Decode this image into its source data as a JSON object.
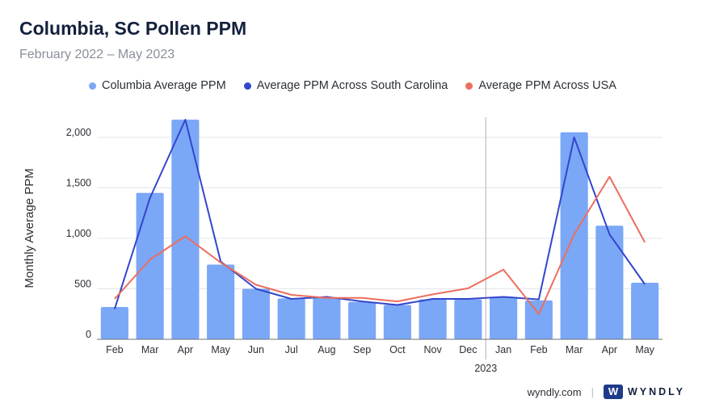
{
  "title": "Columbia, SC Pollen PPM",
  "subtitle": "February 2022 – May 2023",
  "footer": {
    "site": "wyndly.com",
    "separator": "|",
    "brand": "WYNDLY",
    "brand_icon": "wyndly-logo-icon"
  },
  "colors": {
    "bar": "#7ba7f7",
    "sc_line": "#3346cc",
    "usa_line": "#ec6e5e",
    "grid": "#e3e5ea",
    "divider": "#b9bcc2"
  },
  "chart_data": {
    "type": "bar",
    "title": "Columbia, SC Pollen PPM",
    "subtitle": "February 2022 – May 2023",
    "ylabel": "Monthly Average PPM",
    "xlabel": "",
    "ylim": [
      0,
      2200
    ],
    "yticks": [
      0,
      500,
      1000,
      1500,
      2000
    ],
    "ytick_labels": [
      "0",
      "500",
      "1,000",
      "1,500",
      "2,000"
    ],
    "categories": [
      "Feb",
      "Mar",
      "Apr",
      "May",
      "Jun",
      "Jul",
      "Aug",
      "Sep",
      "Oct",
      "Nov",
      "Dec",
      "Jan",
      "Feb",
      "Mar",
      "Apr",
      "May"
    ],
    "year_marker": {
      "label": "2023",
      "before_index": 11
    },
    "legend_position": "top",
    "grid": true,
    "series": [
      {
        "name": "Columbia Average PPM",
        "kind": "bar",
        "values": [
          320,
          1450,
          2175,
          740,
          500,
          405,
          410,
          370,
          340,
          395,
          395,
          420,
          385,
          2050,
          1125,
          560
        ]
      },
      {
        "name": "Average PPM Across South Carolina",
        "kind": "line",
        "values": [
          300,
          1400,
          2175,
          770,
          500,
          400,
          420,
          375,
          340,
          400,
          400,
          420,
          395,
          2000,
          1040,
          545
        ]
      },
      {
        "name": "Average PPM Across USA",
        "kind": "line",
        "values": [
          400,
          790,
          1020,
          760,
          540,
          440,
          410,
          410,
          375,
          445,
          505,
          690,
          250,
          1040,
          1610,
          960
        ]
      }
    ]
  }
}
